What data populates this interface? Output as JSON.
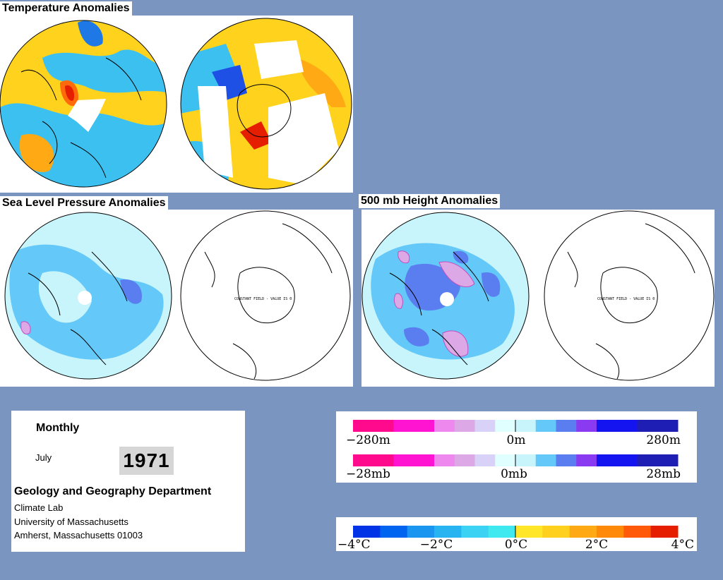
{
  "sections": {
    "temperature": {
      "title": "Temperature Anomalies"
    },
    "slp": {
      "title": "Sea Level Pressure Anomalies",
      "constant_field": "CONSTANT FIELD - VALUE IS 0"
    },
    "height500": {
      "title": "500 mb Height Anomalies",
      "constant_field": "CONSTANT FIELD - VALUE IS 0"
    }
  },
  "info": {
    "period": "Monthly",
    "month": "July",
    "year": "1971",
    "department": "Geology and Geography Department",
    "lines": [
      "Climate Lab",
      "University of Massachusetts",
      "Amherst, Massachusetts 01003"
    ]
  },
  "legend_height": {
    "labels": [
      "−280m",
      "0m",
      "280m"
    ],
    "colors": [
      "#ff0a8c",
      "#ff0a8c",
      "#ff14d2",
      "#ff14d2",
      "#ee88ee",
      "#dca8e6",
      "#d8d2f8",
      "#e0ffff",
      "#c8f4fc",
      "#64c8f8",
      "#5a7ef0",
      "#8a3af0",
      "#1414f0",
      "#1414f0",
      "#1e1eb4",
      "#1e1eb4"
    ]
  },
  "legend_pressure": {
    "labels": [
      "−28mb",
      "0mb",
      "28mb"
    ],
    "colors": [
      "#ff0a8c",
      "#ff0a8c",
      "#ff14d2",
      "#ff14d2",
      "#ee88ee",
      "#dca8e6",
      "#d8d2f8",
      "#e0ffff",
      "#c8f4fc",
      "#64c8f8",
      "#5a7ef0",
      "#8a3af0",
      "#1414f0",
      "#1414f0",
      "#1e1eb4",
      "#1e1eb4"
    ]
  },
  "legend_temperature": {
    "labels": [
      "−4°C",
      "−2°C",
      "0°C",
      "2°C",
      "4°C"
    ],
    "colors": [
      "#0032e6",
      "#0064f0",
      "#1a96f0",
      "#28b4f0",
      "#3cd2f4",
      "#40e8f0",
      "#ffe628",
      "#ffd01e",
      "#ffaa14",
      "#ff8a0a",
      "#ff5a0a",
      "#e61e00"
    ]
  }
}
